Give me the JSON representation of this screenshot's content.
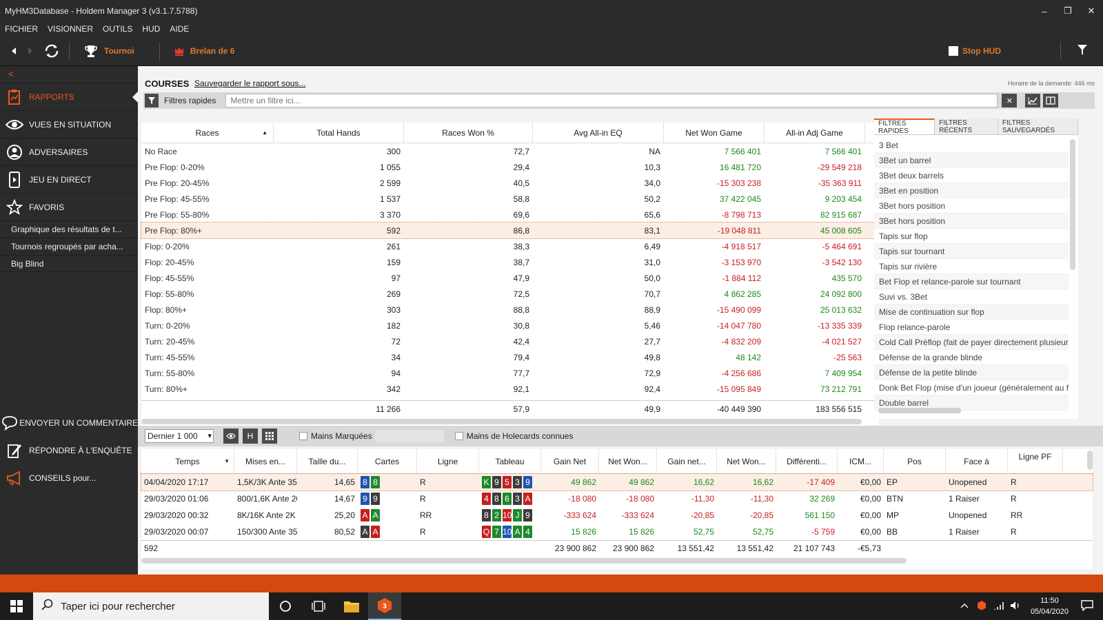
{
  "window": {
    "title": "MyHM3Database - Holdem Manager 3 (v3.1.7.5788)"
  },
  "menu": [
    "FICHIER",
    "VISIONNER",
    "OUTILS",
    "HUD",
    "AIDE"
  ],
  "toolbar": {
    "tournament_label": "Tournoi",
    "hand_label": "Brelan de 6",
    "stop_hud_label": "Stop HUD"
  },
  "sidebar": {
    "back": "<",
    "items": [
      {
        "label": "RAPPORTS",
        "icon": "reports-icon"
      },
      {
        "label": "VUES EN SITUATION",
        "icon": "eye-icon"
      },
      {
        "label": "ADVERSAIRES",
        "icon": "user-icon"
      },
      {
        "label": "JEU EN DIRECT",
        "icon": "live-icon"
      },
      {
        "label": "FAVORIS",
        "icon": "star-icon"
      }
    ],
    "favorites": [
      "Graphique des résultats de t...",
      "Tournois regroupés par acha...",
      "Big Blind"
    ],
    "bottom": [
      {
        "label": "ENVOYER UN COMMENTAIRE",
        "icon": "comment-icon"
      },
      {
        "label": "RÉPONDRE À L'ENQUÊTE",
        "icon": "survey-icon"
      },
      {
        "label": "CONSEILS pour...",
        "icon": "megaphone-icon"
      }
    ]
  },
  "report": {
    "title": "COURSES",
    "save_link": "Sauvegarder le rapport sous...",
    "timing": "Horaire de la demande: 446 ms",
    "quick_filters_label": "Filtres rapides",
    "filter_placeholder": "Mettre un filtre ici...",
    "columns": [
      "Races",
      "Total Hands",
      "Races Won %",
      "Avg All-in EQ",
      "Net Won Game",
      "All-in Adj Game"
    ],
    "rows": [
      [
        "No Race",
        "300",
        "72,7",
        "NA",
        "7 566 401",
        "7 566 401"
      ],
      [
        "Pre Flop: 0-20%",
        "1 055",
        "29,4",
        "10,3",
        "16 481 720",
        "-29 549 218"
      ],
      [
        "Pre Flop: 20-45%",
        "2 599",
        "40,5",
        "34,0",
        "-15 303 238",
        "-35 363 911"
      ],
      [
        "Pre Flop: 45-55%",
        "1 537",
        "58,8",
        "50,2",
        "37 422 045",
        "9 203 454"
      ],
      [
        "Pre Flop: 55-80%",
        "3 370",
        "69,6",
        "65,6",
        "-8 798 713",
        "82 915 687"
      ],
      [
        "Pre Flop: 80%+",
        "592",
        "86,8",
        "83,1",
        "-19 048 811",
        "45 008 605"
      ],
      [
        "Flop: 0-20%",
        "261",
        "38,3",
        "6,49",
        "-4 918 517",
        "-5 464 691"
      ],
      [
        "Flop: 20-45%",
        "159",
        "38,7",
        "31,0",
        "-3 153 970",
        "-3 542 130"
      ],
      [
        "Flop: 45-55%",
        "97",
        "47,9",
        "50,0",
        "-1 884 112",
        "435 570"
      ],
      [
        "Flop: 55-80%",
        "269",
        "72,5",
        "70,7",
        "4 862 285",
        "24 092 800"
      ],
      [
        "Flop: 80%+",
        "303",
        "88,8",
        "88,9",
        "-15 490 099",
        "25 013 632"
      ],
      [
        "Turn: 0-20%",
        "182",
        "30,8",
        "5,46",
        "-14 047 780",
        "-13 335 339"
      ],
      [
        "Turn: 20-45%",
        "72",
        "42,4",
        "27,7",
        "-4 832 209",
        "-4 021 527"
      ],
      [
        "Turn: 45-55%",
        "34",
        "79,4",
        "49,8",
        "48 142",
        "-25 563"
      ],
      [
        "Turn: 55-80%",
        "94",
        "77,7",
        "72,9",
        "-4 256 686",
        "7 409 954"
      ],
      [
        "Turn: 80%+",
        "342",
        "92,1",
        "92,4",
        "-15 095 849",
        "73 212 791"
      ]
    ],
    "totals": [
      "",
      "11 266",
      "57,9",
      "49,9",
      "-40 449 390",
      "183 556 515"
    ]
  },
  "quick_filters": {
    "tabs": [
      "FILTRES RAPIDES",
      "FILTRES RÉCENTS",
      "FILTRES SAUVEGARDÉS"
    ],
    "items": [
      "3 Bet",
      "3Bet un barrel",
      "3Bet deux barrels",
      "3Bet en position",
      "3Bet hors position",
      "3Bet hors position",
      "Tapis sur flop",
      " Tapis sur tournant",
      "Tapis sur rivière",
      "Bet Flop et relance-parole sur tournant",
      "Suvi vs. 3Bet",
      "Mise de continuation sur flop",
      "Flop relance-parole",
      "Cold Call Préflop (fait de payer directement plusieurs",
      "Défense de la grande blinde",
      "Défense de la petite blinde",
      "Donk Bet Flop (mise d'un joueur (généralement au f",
      "Double barrel"
    ]
  },
  "hands_bar": {
    "select_value": "Dernier 1 000",
    "h_button": "H",
    "marked_label": "Mains Marquées",
    "holecards_label": "Mains de Holecards connues"
  },
  "hands": {
    "columns": [
      "Temps",
      "Mises en...",
      "Taille du...",
      "Cartes",
      "Ligne",
      "Tableau",
      "Gain Net",
      "Net Won...",
      "Gain net...",
      "Net Won...",
      "Différenti...",
      "ICM...",
      "Pos",
      "Face à",
      "Ligne PF"
    ],
    "rows": [
      {
        "time": "04/04/2020 17:17",
        "stakes": "1,5K/3K Ante 35",
        "pot": "14,65",
        "cards": [
          [
            "8",
            "d"
          ],
          [
            "8",
            "c"
          ]
        ],
        "line": "R",
        "board": [
          [
            "K",
            "c"
          ],
          [
            "9",
            "s"
          ],
          [
            "5",
            "h"
          ],
          [
            "3",
            "s"
          ],
          [
            "9",
            "d"
          ]
        ],
        "net": "49 862",
        "netwon": "49 862",
        "gnet": "16,62",
        "netwon2": "16,62",
        "diff": "-17 409",
        "icm": "€0,00",
        "pos": "EP",
        "face": "Unopened",
        "pf": "R"
      },
      {
        "time": "29/03/2020 01:06",
        "stakes": "800/1,6K Ante 20",
        "pot": "14,67",
        "cards": [
          [
            "9",
            "d"
          ],
          [
            "9",
            "s"
          ]
        ],
        "line": "R",
        "board": [
          [
            "4",
            "h"
          ],
          [
            "8",
            "s"
          ],
          [
            "6",
            "c"
          ],
          [
            "3",
            "s"
          ],
          [
            "A",
            "h"
          ]
        ],
        "net": "-18 080",
        "netwon": "-18 080",
        "gnet": "-11,30",
        "netwon2": "-11,30",
        "diff": "32 269",
        "icm": "€0,00",
        "pos": "BTN",
        "face": "1 Raiser",
        "pf": "R"
      },
      {
        "time": "29/03/2020 00:32",
        "stakes": "8K/16K Ante 2K",
        "pot": "25,20",
        "cards": [
          [
            "A",
            "h"
          ],
          [
            "A",
            "c"
          ]
        ],
        "line": "RR",
        "board": [
          [
            "8",
            "s"
          ],
          [
            "2",
            "c"
          ],
          [
            "10",
            "h"
          ],
          [
            "J",
            "c"
          ],
          [
            "9",
            "s"
          ]
        ],
        "net": "-333 624",
        "netwon": "-333 624",
        "gnet": "-20,85",
        "netwon2": "-20,85",
        "diff": "561 150",
        "icm": "€0,00",
        "pos": "MP",
        "face": "Unopened",
        "pf": "RR"
      },
      {
        "time": "29/03/2020 00:07",
        "stakes": "150/300 Ante 35",
        "pot": "80,52",
        "cards": [
          [
            "A",
            "s"
          ],
          [
            "A",
            "h"
          ]
        ],
        "line": "R",
        "board": [
          [
            "Q",
            "h"
          ],
          [
            "7",
            "c"
          ],
          [
            "10",
            "d"
          ],
          [
            "A",
            "c"
          ],
          [
            "4",
            "c"
          ]
        ],
        "net": "15 826",
        "netwon": "15 826",
        "gnet": "52,75",
        "netwon2": "52,75",
        "diff": "-5 759",
        "icm": "€0,00",
        "pos": "BB",
        "face": "1 Raiser",
        "pf": "R"
      }
    ],
    "totals": {
      "count": "592",
      "net": "23 900 862",
      "netwon": "23 900 862",
      "gnet": "13 551,42",
      "netwon2": "13 551,42",
      "diff": "21 107 743",
      "icm": "-€5,73"
    }
  },
  "taskbar": {
    "search_placeholder": "Taper ici pour rechercher",
    "time": "11:50",
    "date": "05/04/2020"
  },
  "colors": {
    "accent": "#e8581f",
    "positive": "#1a8a1a",
    "negative": "#c81e1e"
  }
}
